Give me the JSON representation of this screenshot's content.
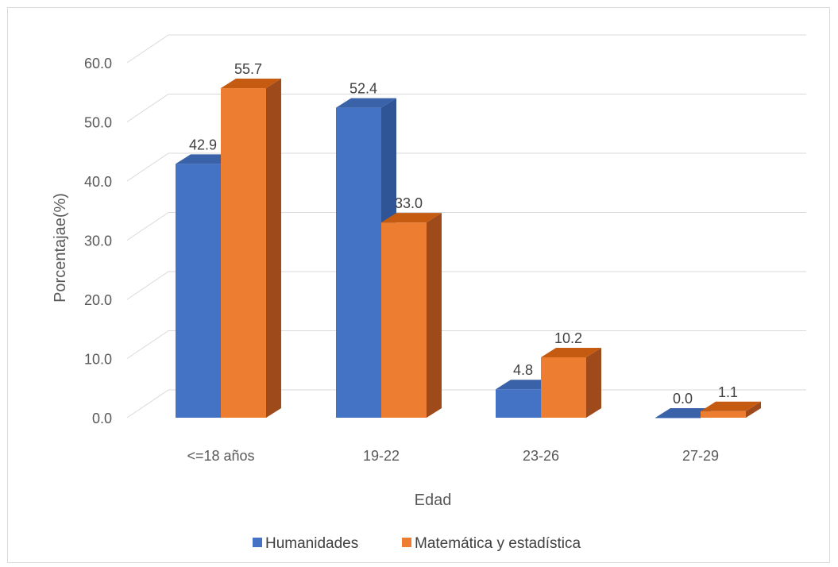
{
  "chart_data": {
    "type": "bar",
    "xlabel": "Edad",
    "ylabel": "Porcentajae(%)",
    "ylim": [
      0,
      60
    ],
    "yticks": [
      "0.0",
      "10.0",
      "20.0",
      "30.0",
      "40.0",
      "50.0",
      "60.0"
    ],
    "categories": [
      "<=18 años",
      "19-22",
      "23-26",
      "27-29"
    ],
    "series": [
      {
        "name": "Humanidades",
        "values": [
          42.9,
          52.4,
          4.8,
          0.0
        ],
        "labels": [
          "42.9",
          "52.4",
          "4.8",
          "0.0"
        ],
        "color": "#4472C4",
        "side_color": "#2F5597",
        "top_color": "#3A62A8"
      },
      {
        "name": "Matemática y estadística",
        "values": [
          55.7,
          33.0,
          10.2,
          1.1
        ],
        "labels": [
          "55.7",
          "33.0",
          "10.2",
          "1.1"
        ],
        "color": "#ED7D31",
        "side_color": "#9E4A1A",
        "top_color": "#C55A11"
      }
    ],
    "grid": true,
    "legend_position": "bottom",
    "style": "3d-clustered-column"
  }
}
